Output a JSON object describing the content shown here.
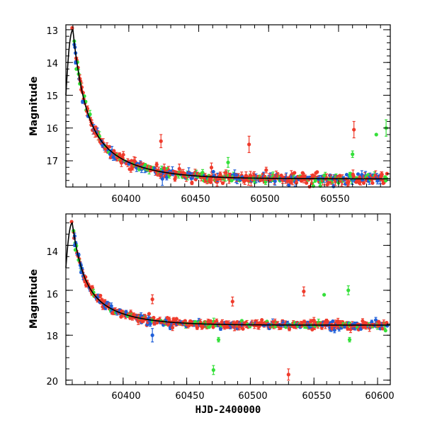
{
  "colors": {
    "red": "#ef3b2c",
    "blue": "#1f5fd9",
    "green": "#35e03a",
    "model": "#000000",
    "axis": "#000000"
  },
  "chart_data": [
    {
      "type": "scatter",
      "xlabel": "",
      "ylabel": "Magnitude",
      "xlim": [
        60355,
        60587
      ],
      "ylim": [
        17.8,
        12.85
      ],
      "y_inverted": true,
      "xticks_major": [
        60400,
        60450,
        60500,
        60550
      ],
      "yticks_major": [
        13,
        14,
        15,
        16,
        17
      ],
      "series": [
        {
          "color": "red",
          "marker": "filled-circle",
          "approx_trend": "peak 12.95 at 60360, decline to ~17.2 by 60420, ~17.5 by 60587"
        },
        {
          "color": "blue",
          "marker": "filled-circle",
          "approx_trend": "14.0 at 60362, follows red decline, ~17.5 at late times"
        },
        {
          "color": "green",
          "marker": "filled-circle",
          "approx_trend": "13.35 at 60361, follows decline with scattered outliers near 16.0-16.3"
        },
        {
          "type": "line",
          "color": "model",
          "approx_trend": "model light curve: rise to 13.0 at 60360, decline to ~17.5"
        }
      ]
    },
    {
      "type": "scatter",
      "xlabel": "HJD-2400000",
      "ylabel": "Magnitude",
      "xlim": [
        60355,
        60610
      ],
      "ylim": [
        20.2,
        12.6
      ],
      "y_inverted": true,
      "xticks_major": [
        60400,
        60450,
        60500,
        60550,
        60600
      ],
      "yticks_major": [
        14,
        16,
        18,
        20
      ],
      "series": [
        {
          "color": "red",
          "marker": "filled-circle",
          "approx_trend": "same light curve, outlier at 19.8 near 60530"
        },
        {
          "color": "blue",
          "marker": "filled-circle",
          "approx_trend": "same light curve, outlier near 18.0 at 60423"
        },
        {
          "color": "green",
          "marker": "filled-circle",
          "approx_trend": "same light curve, outlier at 19.6 near 60471"
        },
        {
          "type": "line",
          "color": "model",
          "approx_trend": "model light curve"
        }
      ]
    }
  ],
  "panels": [
    {
      "ylabel": "Magnitude",
      "xlabel": "",
      "xtick_labels": [
        "60400",
        "60450",
        "60500",
        "60550"
      ],
      "ytick_labels": [
        "13",
        "14",
        "15",
        "16",
        "17"
      ]
    },
    {
      "ylabel": "Magnitude",
      "xlabel": "HJD-2400000",
      "xtick_labels": [
        "60400",
        "60450",
        "60500",
        "60550",
        "60600"
      ],
      "ytick_labels": [
        "14",
        "16",
        "18",
        "20"
      ]
    }
  ]
}
